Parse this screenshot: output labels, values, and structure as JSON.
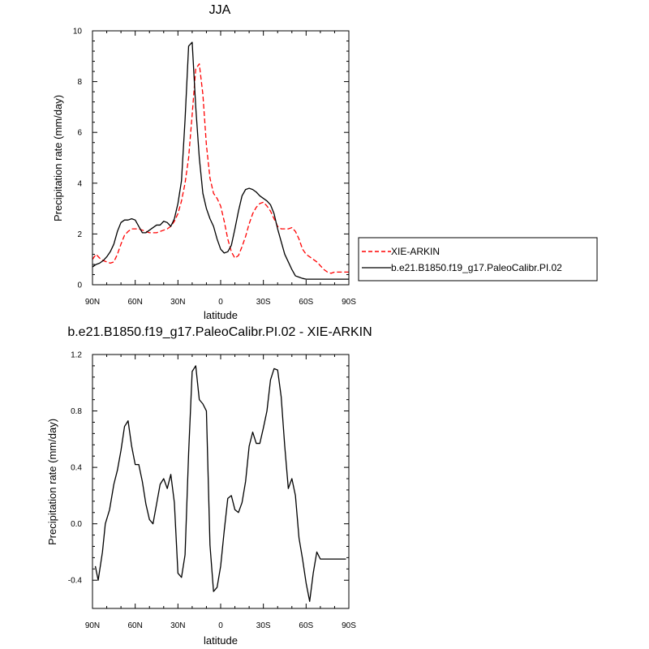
{
  "chart_data": [
    {
      "type": "line",
      "title": "JJA",
      "xlabel": "latitude",
      "ylabel": "Precipitation rate (mm/day)",
      "xlim": [
        -90,
        90
      ],
      "ylim": [
        0,
        10
      ],
      "x_ticks": [
        -90,
        -60,
        -30,
        0,
        30,
        60,
        90
      ],
      "x_tick_labels": [
        "90N",
        "60N",
        "30N",
        "0",
        "30S",
        "60S",
        "90S"
      ],
      "y_ticks": [
        0,
        2,
        4,
        6,
        8,
        10
      ],
      "y_tick_labels": [
        "0",
        "2",
        "4",
        "6",
        "8",
        "10"
      ],
      "legend_position": "right",
      "series": [
        {
          "name": "XIE-ARKIN",
          "color": "#ff0000",
          "dash": "dashed",
          "x": [
            -90,
            -87.5,
            -85,
            -82.5,
            -80,
            -77.5,
            -75,
            -72.5,
            -70,
            -67.5,
            -65,
            -62.5,
            -60,
            -57.5,
            -55,
            -52.5,
            -50,
            -47.5,
            -45,
            -42.5,
            -40,
            -37.5,
            -35,
            -32.5,
            -30,
            -27.5,
            -25,
            -22.5,
            -20,
            -17.5,
            -15,
            -12.5,
            -10,
            -7.5,
            -5,
            -2.5,
            0,
            2.5,
            5,
            7.5,
            10,
            12.5,
            15,
            17.5,
            20,
            22.5,
            25,
            27.5,
            30,
            32.5,
            35,
            37.5,
            40,
            42.5,
            45,
            47.5,
            50,
            52.5,
            55,
            57.5,
            60,
            62.5,
            65,
            67.5,
            70,
            72.5,
            75,
            77.5,
            80,
            82.5,
            85,
            87.5,
            90
          ],
          "y": [
            1.0,
            1.2,
            1.05,
            0.95,
            0.9,
            0.85,
            0.9,
            1.2,
            1.6,
            1.95,
            2.1,
            2.2,
            2.2,
            2.2,
            2.15,
            2.1,
            2.05,
            2.05,
            2.05,
            2.1,
            2.15,
            2.2,
            2.3,
            2.5,
            2.8,
            3.3,
            4.0,
            5.0,
            6.7,
            8.5,
            8.7,
            7.5,
            5.5,
            4.2,
            3.6,
            3.4,
            3.1,
            2.5,
            1.8,
            1.3,
            1.05,
            1.15,
            1.5,
            1.9,
            2.4,
            2.8,
            3.05,
            3.2,
            3.25,
            3.1,
            2.9,
            2.6,
            2.3,
            2.2,
            2.2,
            2.2,
            2.25,
            2.1,
            1.8,
            1.4,
            1.2,
            1.1,
            1.0,
            0.9,
            0.75,
            0.6,
            0.5,
            0.45,
            0.5,
            0.5,
            0.5,
            0.5,
            0.5
          ]
        },
        {
          "name": "b.e21.B1850.f19_g17.PaleoCalibr.PI.02",
          "color": "#000000",
          "dash": "solid",
          "x": [
            -90,
            -87.5,
            -85,
            -82.5,
            -80,
            -77.5,
            -75,
            -72.5,
            -70,
            -67.5,
            -65,
            -62.5,
            -60,
            -57.5,
            -55,
            -52.5,
            -50,
            -47.5,
            -45,
            -42.5,
            -40,
            -37.5,
            -35,
            -32.5,
            -30,
            -27.5,
            -25,
            -22.5,
            -20,
            -17.5,
            -15,
            -12.5,
            -10,
            -7.5,
            -5,
            -2.5,
            0,
            2.5,
            5,
            7.5,
            10,
            12.5,
            15,
            17.5,
            20,
            22.5,
            25,
            27.5,
            30,
            32.5,
            35,
            37.5,
            40,
            42.5,
            45,
            47.5,
            50,
            52.5,
            55,
            57.5,
            60,
            62.5,
            65,
            67.5,
            70,
            72.5,
            75,
            77.5,
            80,
            82.5,
            85,
            87.5,
            90
          ],
          "y": [
            0.7,
            0.8,
            0.85,
            0.95,
            1.1,
            1.3,
            1.6,
            2.1,
            2.45,
            2.55,
            2.55,
            2.6,
            2.55,
            2.3,
            2.05,
            2.05,
            2.15,
            2.25,
            2.35,
            2.35,
            2.5,
            2.45,
            2.3,
            2.6,
            3.2,
            4.1,
            6.5,
            9.4,
            9.55,
            7.0,
            5.0,
            3.6,
            3.0,
            2.6,
            2.3,
            1.8,
            1.4,
            1.25,
            1.3,
            1.55,
            2.2,
            2.9,
            3.5,
            3.75,
            3.8,
            3.75,
            3.65,
            3.5,
            3.4,
            3.3,
            3.15,
            2.8,
            2.2,
            1.7,
            1.2,
            0.9,
            0.6,
            0.35,
            0.3,
            0.25,
            0.22,
            0.22,
            0.22,
            0.22,
            0.22,
            0.22,
            0.22,
            0.22,
            0.22,
            0.22,
            0.22,
            0.22,
            0.22
          ]
        }
      ]
    },
    {
      "type": "line",
      "title": "b.e21.B1850.f19_g17.PaleoCalibr.PI.02 - XIE-ARKIN",
      "xlabel": "latitude",
      "ylabel": "Precipitation rate (mm/day)",
      "xlim": [
        -90,
        90
      ],
      "ylim": [
        -0.6,
        1.2
      ],
      "x_ticks": [
        -90,
        -60,
        -30,
        0,
        30,
        60,
        90
      ],
      "x_tick_labels": [
        "90N",
        "60N",
        "30N",
        "0",
        "30S",
        "60S",
        "90S"
      ],
      "y_ticks": [
        -0.4,
        0.0,
        0.4,
        0.8,
        1.2
      ],
      "y_tick_labels": [
        "-0.4",
        "0.0",
        "0.4",
        "0.8",
        "1.2"
      ],
      "series": [
        {
          "color": "#000000",
          "dash": "solid",
          "x": [
            -88,
            -86,
            -83,
            -81,
            -78,
            -75,
            -72.5,
            -70,
            -67.5,
            -65,
            -62.5,
            -60,
            -57.5,
            -55,
            -52.5,
            -50,
            -47.5,
            -45,
            -42.5,
            -40,
            -37.5,
            -35,
            -32.5,
            -30,
            -27.5,
            -25,
            -22.5,
            -20,
            -17.5,
            -15,
            -12.5,
            -10,
            -7.5,
            -5,
            -2.5,
            0,
            2.5,
            5,
            7.5,
            10,
            12.5,
            15,
            17.5,
            20,
            22.5,
            25,
            27.5,
            30,
            32.5,
            35,
            37.5,
            40,
            42.5,
            45,
            47.5,
            50,
            52.5,
            55,
            57.5,
            60,
            62.5,
            65,
            67.5,
            70,
            72.5,
            75,
            77.5,
            80,
            82.5,
            85,
            88
          ],
          "y": [
            -0.3,
            -0.4,
            -0.2,
            0.0,
            0.1,
            0.28,
            0.38,
            0.52,
            0.69,
            0.73,
            0.55,
            0.42,
            0.42,
            0.3,
            0.14,
            0.03,
            0.0,
            0.14,
            0.28,
            0.32,
            0.25,
            0.35,
            0.15,
            -0.35,
            -0.38,
            -0.22,
            0.5,
            1.08,
            1.12,
            0.88,
            0.85,
            0.8,
            -0.15,
            -0.48,
            -0.45,
            -0.3,
            -0.05,
            0.18,
            0.2,
            0.1,
            0.08,
            0.15,
            0.3,
            0.55,
            0.65,
            0.57,
            0.57,
            0.68,
            0.8,
            1.02,
            1.1,
            1.09,
            0.9,
            0.55,
            0.25,
            0.32,
            0.2,
            -0.1,
            -0.25,
            -0.42,
            -0.55,
            -0.35,
            -0.2,
            -0.25,
            -0.25,
            -0.25,
            -0.25,
            -0.25,
            -0.25,
            -0.25,
            -0.25
          ]
        }
      ]
    }
  ]
}
